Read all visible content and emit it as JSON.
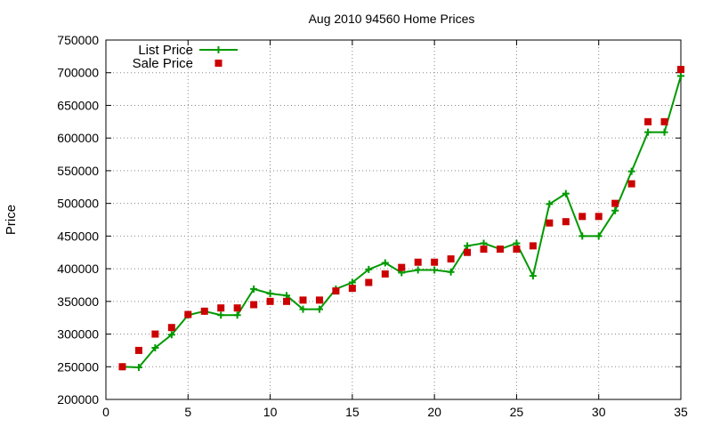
{
  "chart_data": {
    "type": "line",
    "title": "Aug 2010 94560 Home Prices",
    "xlabel": "",
    "ylabel": "Price",
    "xlim": [
      0,
      35
    ],
    "ylim": [
      200000,
      750000
    ],
    "xticks": [
      0,
      5,
      10,
      15,
      20,
      25,
      30,
      35
    ],
    "yticks": [
      200000,
      250000,
      300000,
      350000,
      400000,
      450000,
      500000,
      550000,
      600000,
      650000,
      700000,
      750000
    ],
    "grid": true,
    "legend_position": "top-left",
    "series": [
      {
        "name": "List Price",
        "style": "line+markers",
        "marker": "plus",
        "color": "#009900",
        "x": [
          1,
          2,
          3,
          4,
          5,
          6,
          7,
          8,
          9,
          10,
          11,
          12,
          13,
          14,
          15,
          16,
          17,
          18,
          19,
          20,
          21,
          22,
          23,
          24,
          25,
          26,
          27,
          28,
          29,
          30,
          31,
          32,
          33,
          34,
          35
        ],
        "y": [
          250000,
          249000,
          279000,
          299000,
          329000,
          335000,
          329000,
          329000,
          369000,
          362000,
          359000,
          338000,
          338000,
          369000,
          379000,
          399000,
          409000,
          394000,
          398000,
          398000,
          395000,
          435000,
          439000,
          430000,
          439000,
          389000,
          499000,
          515000,
          450000,
          450000,
          489000,
          549000,
          609000,
          609000,
          695000
        ]
      },
      {
        "name": "Sale Price",
        "style": "markers",
        "marker": "square",
        "color": "#cc0000",
        "x": [
          1,
          2,
          3,
          4,
          5,
          6,
          7,
          8,
          9,
          10,
          11,
          12,
          13,
          14,
          15,
          16,
          17,
          18,
          19,
          20,
          21,
          22,
          23,
          24,
          25,
          26,
          27,
          28,
          29,
          30,
          31,
          32,
          33,
          34,
          35
        ],
        "y": [
          250000,
          275000,
          300000,
          310000,
          330000,
          335000,
          340000,
          340000,
          345000,
          350000,
          350000,
          352000,
          352000,
          366000,
          370000,
          379000,
          392000,
          402000,
          410000,
          410000,
          415000,
          425000,
          430000,
          430000,
          430000,
          435000,
          470000,
          472000,
          480000,
          480000,
          500000,
          530000,
          625000,
          625000,
          705000
        ]
      }
    ]
  }
}
